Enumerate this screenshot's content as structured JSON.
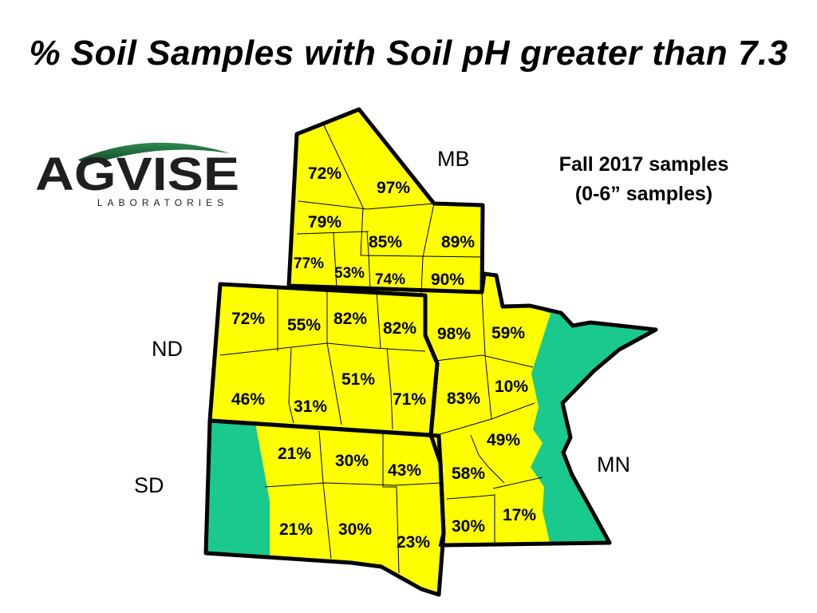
{
  "title": "% Soil Samples with Soil pH greater than 7.3",
  "logo": {
    "name": "AGVISE",
    "subtitle": "LABORATORIES"
  },
  "info": {
    "line1": "Fall 2017 samples",
    "line2": "(0-6” samples)"
  },
  "regions": {
    "mb": "MB",
    "nd": "ND",
    "sd": "SD",
    "mn": "MN"
  },
  "colors": {
    "region_fill": "#ffff00",
    "no_data_fill": "#1ac98e",
    "border": "#000000",
    "logo_dark": "#1f1f1f",
    "logo_green": "#1b6b3a"
  },
  "percentages": {
    "mb": [
      "72%",
      "97%",
      "79%",
      "85%",
      "89%",
      "77%",
      "53%",
      "74%",
      "90%"
    ],
    "nd": [
      "72%",
      "55%",
      "82%",
      "82%",
      "46%",
      "31%",
      "51%",
      "71%"
    ],
    "mn": [
      "98%",
      "59%",
      "83%",
      "10%",
      "49%",
      "58%",
      "30%",
      "17%"
    ],
    "sd": [
      "21%",
      "30%",
      "43%",
      "21%",
      "30%",
      "23%"
    ]
  }
}
